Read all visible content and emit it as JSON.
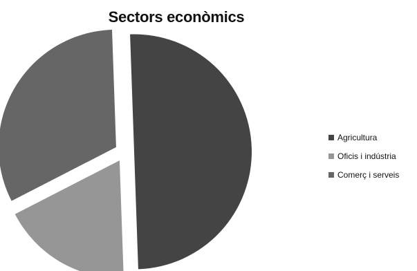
{
  "chart_data": {
    "type": "pie",
    "title": "Sectors econòmics",
    "categories": [
      "Agricultura",
      "Oficis i indústria",
      "Comerç i serveis"
    ],
    "values": [
      50,
      18,
      32
    ],
    "colors": [
      "#444444",
      "#969696",
      "#666666"
    ],
    "exploded": true,
    "legend_position": "right"
  }
}
